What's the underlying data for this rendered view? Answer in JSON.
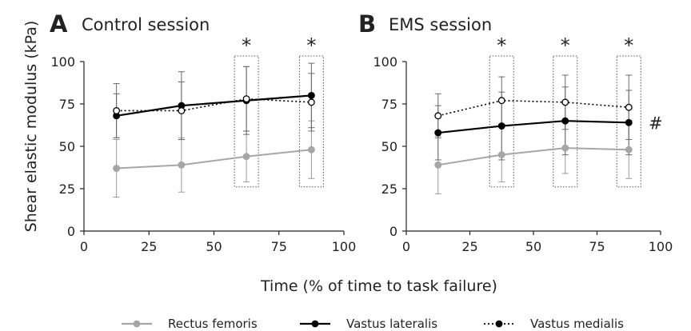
{
  "figure": {
    "y_axis_label": "Shear elastic modulus (kPa)",
    "x_axis_label": "Time (% of time to task failure)"
  },
  "legend": [
    {
      "name": "Rectus femoris",
      "color": "#a6a6a6",
      "line": "solid",
      "marker": "filled-circle"
    },
    {
      "name": "Vastus lateralis",
      "color": "#000000",
      "line": "solid",
      "marker": "filled-circle"
    },
    {
      "name": "Vastus medialis",
      "color": "#000000",
      "line": "dotted",
      "marker": "open-circle"
    }
  ],
  "chart_data": [
    {
      "type": "line",
      "panel_letter": "A",
      "title": "Control session",
      "xlim": [
        0,
        100
      ],
      "ylim": [
        0,
        100
      ],
      "xticks": [
        0,
        25,
        50,
        75,
        100
      ],
      "yticks": [
        0,
        25,
        50,
        75,
        100
      ],
      "grid": false,
      "x": [
        12.5,
        37.5,
        62.5,
        87.5
      ],
      "series": [
        {
          "name": "Rectus femoris",
          "color": "#a6a6a6",
          "values": [
            37,
            39,
            44,
            48
          ],
          "errors": [
            17,
            16,
            15,
            17
          ]
        },
        {
          "name": "Vastus lateralis",
          "color": "#000000",
          "values": [
            68,
            74,
            77,
            80
          ],
          "errors": [
            13,
            20,
            20,
            19
          ]
        },
        {
          "name": "Vastus medialis",
          "color": "#000000",
          "values": [
            71,
            71,
            78,
            76
          ],
          "errors": [
            16,
            17,
            19,
            17
          ]
        }
      ],
      "significance_markers": [
        {
          "x": 62.5,
          "label": "*"
        },
        {
          "x": 87.5,
          "label": "*"
        }
      ],
      "side_marker": ""
    },
    {
      "type": "line",
      "panel_letter": "B",
      "title": "EMS session",
      "xlim": [
        0,
        100
      ],
      "ylim": [
        0,
        100
      ],
      "xticks": [
        0,
        25,
        50,
        75,
        100
      ],
      "yticks": [
        0,
        25,
        50,
        75,
        100
      ],
      "grid": false,
      "x": [
        12.5,
        37.5,
        62.5,
        87.5
      ],
      "series": [
        {
          "name": "Rectus femoris",
          "color": "#a6a6a6",
          "values": [
            39,
            45,
            49,
            48
          ],
          "errors": [
            17,
            16,
            15,
            17
          ]
        },
        {
          "name": "Vastus lateralis",
          "color": "#000000",
          "values": [
            58,
            62,
            65,
            64
          ],
          "errors": [
            16,
            20,
            20,
            19
          ]
        },
        {
          "name": "Vastus medialis",
          "color": "#000000",
          "values": [
            68,
            77,
            76,
            73
          ],
          "errors": [
            13,
            14,
            16,
            19
          ]
        }
      ],
      "significance_markers": [
        {
          "x": 37.5,
          "label": "*"
        },
        {
          "x": 62.5,
          "label": "*"
        },
        {
          "x": 87.5,
          "label": "*"
        }
      ],
      "side_marker": "#"
    }
  ]
}
